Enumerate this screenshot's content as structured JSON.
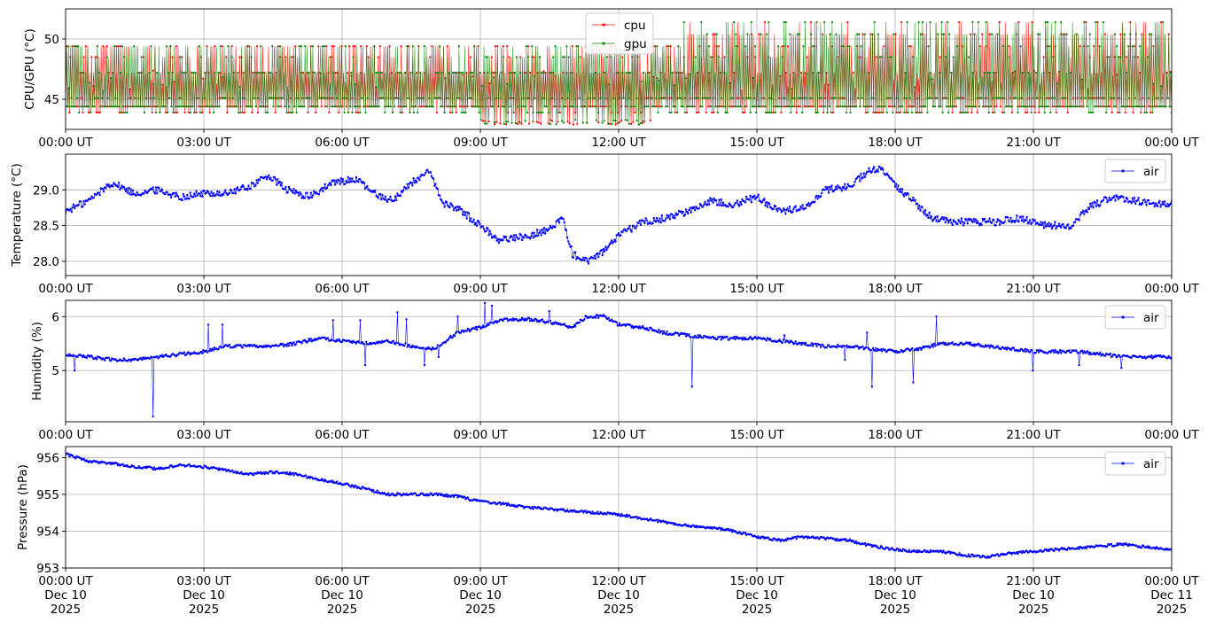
{
  "chart_data": [
    {
      "type": "line",
      "ylabel": "CPU/GPU (°C)",
      "ylim": [
        42.5,
        52.5
      ],
      "yticks": [
        45,
        50
      ],
      "grid": true,
      "legend_position": "top-center",
      "x_range_hours": [
        0,
        24
      ],
      "xticks": [
        "00:00 UT",
        "03:00 UT",
        "06:00 UT",
        "09:00 UT",
        "12:00 UT",
        "15:00 UT",
        "18:00 UT",
        "21:00 UT",
        "00:00 UT"
      ],
      "series": [
        {
          "name": "cpu",
          "color": "#ff0000",
          "marker": "dot",
          "values_range": [
            42.9,
            51.9
          ],
          "baseline_levels": [
            43.9,
            44.4,
            45.1,
            47.2,
            48.5,
            49.4,
            50.4
          ]
        },
        {
          "name": "gpu",
          "color": "#008000",
          "marker": "dot",
          "values_range": [
            43.4,
            51.9
          ],
          "baseline_levels": [
            43.9,
            44.4,
            45.1,
            45.8,
            47.2,
            48.5,
            49.4,
            50.4
          ]
        }
      ]
    },
    {
      "type": "line",
      "ylabel": "Temperature (°C)",
      "ylim": [
        27.8,
        29.5
      ],
      "yticks": [
        28.0,
        28.5,
        29.0
      ],
      "ytick_labels": [
        "28.0",
        "28.5",
        "29.0"
      ],
      "grid": true,
      "legend_position": "top-right",
      "xticks": [
        "00:00 UT",
        "03:00 UT",
        "06:00 UT",
        "09:00 UT",
        "12:00 UT",
        "15:00 UT",
        "18:00 UT",
        "21:00 UT",
        "00:00 UT"
      ],
      "series": [
        {
          "name": "air",
          "color": "#0000ff",
          "marker": "dot",
          "x_hours": [
            0,
            0.5,
            1.0,
            1.5,
            2.0,
            2.5,
            3.0,
            3.5,
            4.0,
            4.4,
            4.8,
            5.3,
            5.8,
            6.3,
            6.7,
            7.1,
            7.5,
            7.9,
            8.2,
            8.5,
            9.0,
            9.4,
            10.0,
            10.5,
            10.8,
            11.0,
            11.3,
            11.7,
            12.0,
            12.5,
            13.0,
            13.5,
            14.0,
            14.5,
            15.0,
            15.5,
            16.0,
            16.5,
            17.0,
            17.4,
            17.7,
            18.0,
            18.4,
            18.8,
            19.2,
            19.7,
            20.2,
            20.7,
            21.3,
            21.8,
            22.2,
            22.7,
            23.2,
            23.6,
            24.0
          ],
          "y": [
            28.7,
            28.85,
            29.1,
            28.95,
            29.0,
            28.9,
            28.95,
            28.95,
            29.05,
            29.2,
            29.0,
            28.9,
            29.1,
            29.15,
            28.95,
            28.85,
            29.1,
            29.25,
            28.8,
            28.75,
            28.5,
            28.3,
            28.35,
            28.45,
            28.6,
            28.1,
            28.0,
            28.15,
            28.35,
            28.55,
            28.6,
            28.7,
            28.85,
            28.8,
            28.9,
            28.7,
            28.75,
            29.0,
            29.05,
            29.25,
            29.3,
            29.05,
            28.85,
            28.6,
            28.55,
            28.55,
            28.55,
            28.6,
            28.5,
            28.5,
            28.75,
            28.9,
            28.85,
            28.8,
            28.8
          ]
        }
      ]
    },
    {
      "type": "line",
      "ylabel": "Humidity (%)",
      "ylim": [
        4.05,
        6.3
      ],
      "yticks": [
        5,
        6
      ],
      "grid": true,
      "legend_position": "top-right",
      "xticks": [
        "00:00 UT",
        "03:00 UT",
        "06:00 UT",
        "09:00 UT",
        "12:00 UT",
        "15:00 UT",
        "18:00 UT",
        "21:00 UT",
        "00:00 UT"
      ],
      "series": [
        {
          "name": "air",
          "color": "#0000ff",
          "marker": "dot",
          "x_hours": [
            0,
            0.5,
            1.0,
            1.5,
            2.0,
            2.5,
            3.0,
            3.5,
            4.0,
            4.5,
            5.0,
            5.5,
            6.0,
            6.5,
            7.0,
            7.5,
            8.0,
            8.5,
            9.0,
            9.5,
            10.0,
            10.5,
            11.0,
            11.3,
            11.7,
            12.0,
            12.5,
            13.0,
            13.5,
            14.0,
            14.5,
            15.0,
            15.5,
            16.0,
            16.5,
            17.0,
            17.5,
            18.0,
            18.5,
            19.0,
            19.5,
            20.0,
            20.5,
            21.0,
            21.5,
            22.0,
            22.5,
            23.0,
            23.5,
            24.0
          ],
          "y": [
            5.3,
            5.25,
            5.2,
            5.2,
            5.25,
            5.3,
            5.35,
            5.45,
            5.45,
            5.45,
            5.5,
            5.6,
            5.55,
            5.5,
            5.55,
            5.45,
            5.4,
            5.7,
            5.8,
            5.95,
            5.95,
            5.9,
            5.8,
            6.0,
            6.0,
            5.85,
            5.8,
            5.7,
            5.65,
            5.6,
            5.6,
            5.6,
            5.55,
            5.5,
            5.45,
            5.45,
            5.4,
            5.35,
            5.4,
            5.5,
            5.5,
            5.45,
            5.4,
            5.35,
            5.35,
            5.35,
            5.3,
            5.25,
            5.25,
            5.25
          ],
          "spikes": [
            [
              0.2,
              5.0
            ],
            [
              1.9,
              4.15
            ],
            [
              3.1,
              5.85
            ],
            [
              3.4,
              5.85
            ],
            [
              5.8,
              5.93
            ],
            [
              6.4,
              5.93
            ],
            [
              6.5,
              5.1
            ],
            [
              7.2,
              6.08
            ],
            [
              7.4,
              5.95
            ],
            [
              7.8,
              5.1
            ],
            [
              8.1,
              5.25
            ],
            [
              8.5,
              6.0
            ],
            [
              9.1,
              6.25
            ],
            [
              9.25,
              6.2
            ],
            [
              10.5,
              6.1
            ],
            [
              13.6,
              4.7
            ],
            [
              15.6,
              5.65
            ],
            [
              16.8,
              5.45
            ],
            [
              16.9,
              5.45
            ],
            [
              16.9,
              5.2
            ],
            [
              17.4,
              5.7
            ],
            [
              17.5,
              4.7
            ],
            [
              18.4,
              4.78
            ],
            [
              18.9,
              6.0
            ],
            [
              21.0,
              5.0
            ],
            [
              22.0,
              5.1
            ],
            [
              22.9,
              5.05
            ]
          ]
        }
      ]
    },
    {
      "type": "line",
      "ylabel": "Pressure (hPa)",
      "ylim": [
        953.0,
        956.3
      ],
      "yticks": [
        953,
        954,
        955,
        956
      ],
      "grid": true,
      "legend_position": "top-right",
      "xticks": [
        "00:00 UT\nDec 10\n2025",
        "03:00 UT\nDec 10\n2025",
        "06:00 UT\nDec 10\n2025",
        "09:00 UT\nDec 10\n2025",
        "12:00 UT\nDec 10\n2025",
        "15:00 UT\nDec 10\n2025",
        "18:00 UT\nDec 10\n2025",
        "21:00 UT\nDec 10\n2025",
        "00:00 UT\nDec 11\n2025"
      ],
      "series": [
        {
          "name": "air",
          "color": "#0000ff",
          "marker": "dot",
          "x_hours": [
            0,
            0.5,
            1.0,
            1.5,
            2.0,
            2.5,
            3.0,
            3.5,
            4.0,
            4.5,
            5.0,
            5.5,
            6.0,
            6.5,
            7.0,
            7.5,
            8.0,
            8.5,
            9.0,
            9.5,
            10.0,
            10.5,
            11.0,
            11.5,
            12.0,
            12.5,
            13.0,
            13.5,
            14.0,
            14.5,
            15.0,
            15.5,
            16.0,
            16.5,
            17.0,
            17.5,
            18.0,
            18.5,
            19.0,
            19.5,
            20.0,
            20.5,
            21.0,
            21.5,
            22.0,
            22.5,
            23.0,
            23.5,
            24.0
          ],
          "y": [
            956.1,
            955.9,
            955.85,
            955.75,
            955.7,
            955.8,
            955.75,
            955.65,
            955.55,
            955.6,
            955.55,
            955.4,
            955.3,
            955.15,
            955.0,
            955.0,
            955.0,
            954.95,
            954.8,
            954.75,
            954.65,
            954.6,
            954.55,
            954.5,
            954.45,
            954.35,
            954.25,
            954.15,
            954.1,
            954.0,
            953.85,
            953.75,
            953.85,
            953.8,
            953.75,
            953.6,
            953.5,
            953.45,
            953.45,
            953.35,
            953.3,
            953.4,
            953.45,
            953.5,
            953.55,
            953.6,
            953.65,
            953.55,
            953.5
          ]
        }
      ]
    }
  ]
}
